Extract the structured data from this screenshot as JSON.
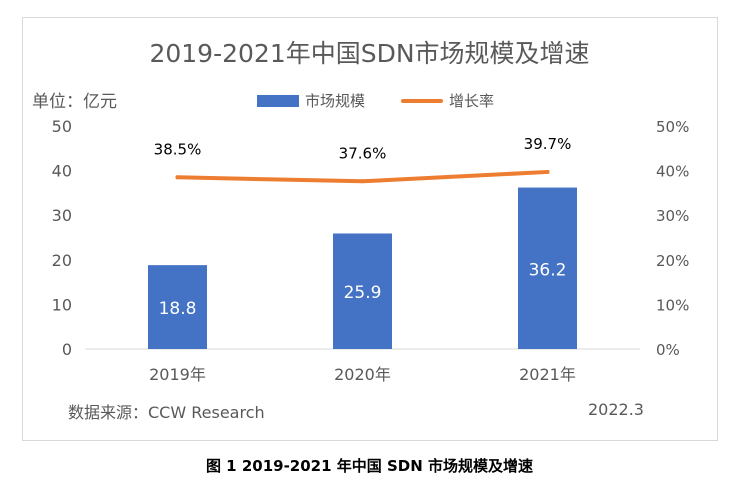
{
  "chart_data": {
    "type": "bar",
    "title": "2019-2021年中国SDN市场规模及增速",
    "unit_label": "单位：亿元",
    "categories": [
      "2019年",
      "2020年",
      "2021年"
    ],
    "series": [
      {
        "name": "市场规模",
        "type": "bar",
        "axis": "left",
        "values": [
          18.8,
          25.9,
          36.2
        ],
        "labels": [
          "18.8",
          "25.9",
          "36.2"
        ],
        "color": "#4472c4"
      },
      {
        "name": "增长率",
        "type": "line",
        "axis": "right",
        "values": [
          38.5,
          37.6,
          39.7
        ],
        "labels": [
          "38.5%",
          "37.6%",
          "39.7%"
        ],
        "color": "#ed7d31"
      }
    ],
    "y_left": {
      "ticks": [
        "0",
        "10",
        "20",
        "30",
        "40",
        "50"
      ],
      "ylim": [
        0,
        50
      ]
    },
    "y_right": {
      "ticks": [
        "0%",
        "10%",
        "20%",
        "30%",
        "40%",
        "50%"
      ],
      "ylim": [
        0,
        50
      ]
    },
    "grid": false,
    "legend_position": "top"
  },
  "source": "数据来源：CCW Research",
  "date": "2022.3",
  "caption": "图 1 2019-2021 年中国 SDN 市场规模及增速"
}
